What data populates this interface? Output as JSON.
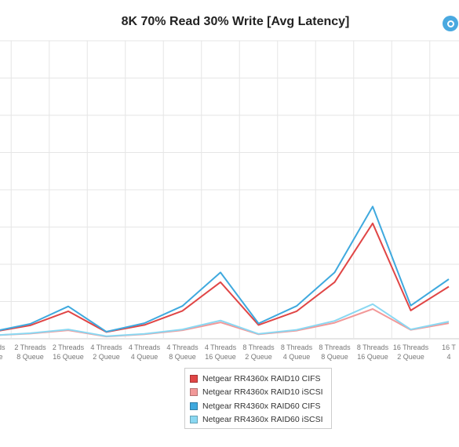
{
  "chart_data": {
    "type": "line",
    "title": "8K 70% Read 30% Write [Avg Latency]",
    "xlabel": "",
    "ylabel": "",
    "grid": true,
    "legend_position": "bottom",
    "ylim": [
      0,
      8
    ],
    "categories": [
      {
        "line1": "Threads",
        "line2": "Queue"
      },
      {
        "line1": "2 Threads",
        "line2": "8 Queue"
      },
      {
        "line1": "2 Threads",
        "line2": "16 Queue"
      },
      {
        "line1": "4 Threads",
        "line2": "2 Queue"
      },
      {
        "line1": "4 Threads",
        "line2": "4 Queue"
      },
      {
        "line1": "4 Threads",
        "line2": "8 Queue"
      },
      {
        "line1": "4 Threads",
        "line2": "16 Queue"
      },
      {
        "line1": "8 Threads",
        "line2": "2 Queue"
      },
      {
        "line1": "8 Threads",
        "line2": "4 Queue"
      },
      {
        "line1": "8 Threads",
        "line2": "8 Queue"
      },
      {
        "line1": "8 Threads",
        "line2": "16 Queue"
      },
      {
        "line1": "16 Threads",
        "line2": "2 Queue"
      },
      {
        "line1": "16 T",
        "line2": "4"
      }
    ],
    "series": [
      {
        "name": "Netgear RR4360x RAID10 CIFS",
        "color": "#e04646",
        "values": [
          0.18,
          0.36,
          0.74,
          0.18,
          0.37,
          0.75,
          1.52,
          0.37,
          0.74,
          1.52,
          3.1,
          0.76,
          1.4
        ]
      },
      {
        "name": "Netgear RR4360x RAID10 iSCSI",
        "color": "#f29999",
        "values": [
          0.09,
          0.14,
          0.23,
          0.06,
          0.12,
          0.23,
          0.44,
          0.12,
          0.22,
          0.43,
          0.8,
          0.24,
          0.42
        ]
      },
      {
        "name": "Netgear RR4360x RAID60 CIFS",
        "color": "#3fa9de",
        "values": [
          0.19,
          0.4,
          0.87,
          0.19,
          0.42,
          0.88,
          1.78,
          0.41,
          0.88,
          1.78,
          3.55,
          0.89,
          1.6
        ]
      },
      {
        "name": "Netgear RR4360x RAID60 iSCSI",
        "color": "#8ad8f2",
        "values": [
          0.09,
          0.15,
          0.25,
          0.07,
          0.13,
          0.25,
          0.49,
          0.13,
          0.24,
          0.48,
          0.93,
          0.25,
          0.46
        ]
      }
    ]
  }
}
